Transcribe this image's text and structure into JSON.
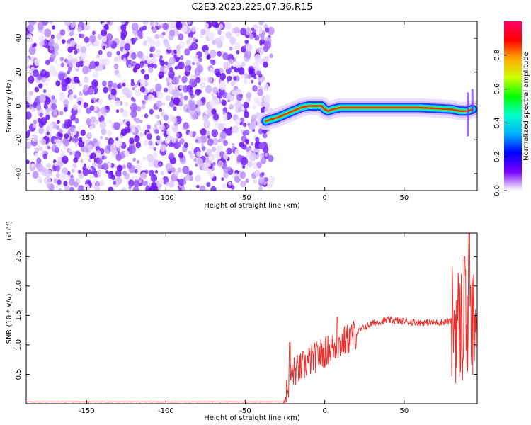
{
  "title": "C2E3.2023.225.07.36.R15",
  "chart_data": [
    {
      "type": "heatmap",
      "xlabel": "Height of straight line (km)",
      "ylabel": "Frequency (Hz)",
      "xlim": [
        -188,
        96
      ],
      "ylim": [
        -50,
        50
      ],
      "xticks": [
        -150,
        -100,
        -50,
        0,
        50
      ],
      "yticks": [
        -40,
        -20,
        0,
        20,
        40
      ],
      "noise_region_x": [
        -188,
        -35
      ],
      "ridge": {
        "x": [
          -37,
          -34,
          -30,
          -25,
          -20,
          -15,
          -10,
          -5,
          -2,
          0,
          2,
          5,
          10,
          20,
          40,
          60,
          80,
          85,
          90,
          93
        ],
        "y": [
          -9,
          -8,
          -7,
          -5,
          -3,
          -1,
          0,
          0,
          0,
          -2,
          -3,
          -2,
          -1,
          -1,
          -1,
          -1,
          -2,
          -3,
          -3,
          -2
        ]
      },
      "colorbar": {
        "label": "Normalized spectral amplitude",
        "range": [
          0,
          1
        ],
        "ticks": [
          "0.0",
          "0.2",
          "0.4",
          "0.6",
          "0.8"
        ],
        "colors": [
          "#ffffff",
          "#7a00ff",
          "#0000ff",
          "#00b0ff",
          "#00ffcc",
          "#00ff00",
          "#ccff00",
          "#ffaa00",
          "#ff0000",
          "#ff0066"
        ]
      }
    },
    {
      "type": "line",
      "xlabel": "Height of straight line (km)",
      "ylabel": "SNR (10 * v/v)",
      "y_multiplier": "(x10⁴)",
      "xlim": [
        -188,
        96
      ],
      "ylim": [
        0,
        2.9
      ],
      "xticks": [
        -150,
        -100,
        -50,
        0,
        50
      ],
      "yticks": [
        "0.5",
        "1.0",
        "1.5",
        "2.0",
        "2.5"
      ],
      "color": "#e8322e",
      "envelope": {
        "x": [
          -188,
          -26,
          -25,
          -22,
          -19,
          -15,
          -10,
          -5,
          0,
          5,
          10,
          15,
          20,
          25,
          30,
          35,
          40,
          45,
          50,
          60,
          70,
          80,
          85,
          88,
          91,
          93,
          95
        ],
        "y": [
          0.03,
          0.03,
          0.05,
          0.45,
          0.55,
          0.6,
          0.72,
          0.8,
          0.88,
          0.95,
          1.02,
          1.1,
          1.2,
          1.3,
          1.36,
          1.4,
          1.42,
          1.41,
          1.4,
          1.38,
          1.38,
          1.4,
          1.35,
          1.3,
          1.4,
          1.2,
          1.5
        ]
      },
      "peaks": [
        {
          "x": -22,
          "y": 1.04
        },
        {
          "x": 8,
          "y": 1.47
        },
        {
          "x": 91,
          "y": 2.9
        },
        {
          "x": 88,
          "y": 2.5
        }
      ]
    }
  ]
}
